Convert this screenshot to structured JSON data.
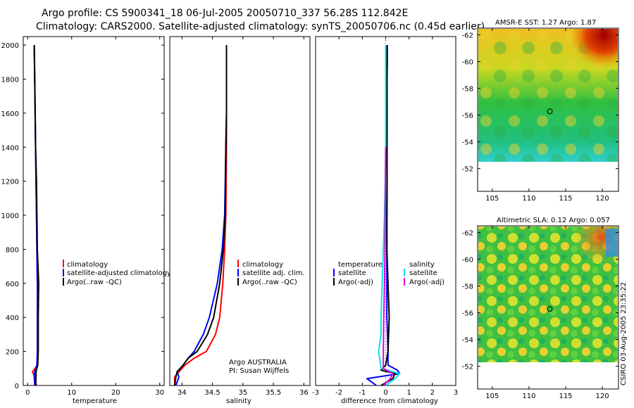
{
  "title_line1": "Argo profile: CS 5900341_18 06-Jul-2005 20050710_337 56.28S 112.842E",
  "title_line2": "Climatology: CARS2000. Satellite-adjusted climatology: synTS_20050706.nc (0.45d earlier)",
  "side_label": "CSIRO 03-Aug-2005 23:35:22",
  "colors": {
    "climatology": "#ff0000",
    "satellite": "#0000ff",
    "argo": "#000000",
    "sal_sat": "#00e5e5",
    "sal_argo": "#e000e0"
  },
  "chart_data": [
    {
      "type": "line",
      "name": "temperature-panel",
      "xlabel": "temperature",
      "ylabel": "",
      "xlim": [
        -1,
        31
      ],
      "ylim": [
        2050,
        0
      ],
      "xticks": [
        0,
        10,
        20,
        30
      ],
      "xtick_labels": [
        "0",
        "10",
        "20",
        "30"
      ],
      "yticks": [
        0,
        200,
        400,
        600,
        800,
        1000,
        1200,
        1400,
        1600,
        1800,
        2000
      ],
      "ytick_labels": [
        "0",
        "200",
        "400",
        "600",
        "800",
        "1000",
        "1200",
        "1400",
        "1600",
        "1800",
        "2000"
      ],
      "legend": [
        "climatology",
        "satellite-adjusted climatology",
        "Argo(..raw -QC)"
      ],
      "legend_position": "middle-right",
      "series": [
        {
          "name": "climatology",
          "color": "#ff0000",
          "x": [
            2.0,
            1.6,
            1.1,
            2.2,
            2.3,
            2.3,
            2.2,
            2.1,
            2.0,
            1.9,
            1.8,
            1.7,
            1.6,
            1.5
          ],
          "y": [
            0,
            50,
            80,
            120,
            200,
            400,
            600,
            800,
            1000,
            1200,
            1400,
            1600,
            1800,
            2000
          ]
        },
        {
          "name": "satellite-adjusted climatology",
          "color": "#0000ff",
          "x": [
            1.6,
            1.5,
            1.6,
            2.1,
            2.2,
            2.2,
            2.2,
            2.1,
            2.0,
            1.9,
            1.8,
            1.7,
            1.6,
            1.5
          ],
          "y": [
            0,
            50,
            80,
            120,
            200,
            400,
            600,
            800,
            1000,
            1200,
            1400,
            1600,
            1800,
            2000
          ]
        },
        {
          "name": "Argo(..raw -QC)",
          "color": "#000000",
          "x": [
            1.8,
            1.9,
            1.9,
            2.3,
            2.4,
            2.4,
            2.5,
            2.2,
            2.1,
            2.0,
            1.8,
            1.7,
            1.6,
            1.5
          ],
          "y": [
            0,
            50,
            80,
            120,
            200,
            400,
            600,
            800,
            1000,
            1200,
            1400,
            1600,
            1800,
            2000
          ]
        }
      ]
    },
    {
      "type": "line",
      "name": "salinity-panel",
      "xlabel": "salinity",
      "ylabel": "",
      "xlim": [
        33.8,
        36.1
      ],
      "ylim": [
        2050,
        0
      ],
      "xticks": [
        34,
        34.5,
        35,
        35.5,
        36
      ],
      "xtick_labels": [
        "34",
        "34.5",
        "35",
        "35.5",
        "36"
      ],
      "yticks": [],
      "ytick_labels": [],
      "legend": [
        "climatology",
        "satellite adj. clim.",
        "Argo(..raw -QC)"
      ],
      "legend_position": "middle-right",
      "annotations": [
        "Argo AUSTRALIA",
        "PI: Susan Wijffels"
      ],
      "series": [
        {
          "name": "climatology",
          "color": "#ff0000",
          "x": [
            33.88,
            33.88,
            33.95,
            34.05,
            34.2,
            34.4,
            34.55,
            34.62,
            34.67,
            34.7,
            34.72,
            34.73,
            34.73,
            34.73,
            34.73
          ],
          "y": [
            0,
            50,
            80,
            120,
            160,
            200,
            300,
            400,
            600,
            800,
            1000,
            1400,
            1600,
            1800,
            2000
          ]
        },
        {
          "name": "satellite adj. clim.",
          "color": "#0000ff",
          "x": [
            33.9,
            33.95,
            33.92,
            34.02,
            34.1,
            34.2,
            34.35,
            34.45,
            34.58,
            34.66,
            34.7,
            34.72,
            34.73,
            34.73,
            34.73
          ],
          "y": [
            0,
            50,
            80,
            120,
            160,
            200,
            300,
            400,
            600,
            800,
            1000,
            1400,
            1600,
            1800,
            2000
          ]
        },
        {
          "name": "Argo(..raw -QC)",
          "color": "#000000",
          "x": [
            33.88,
            33.9,
            33.92,
            34.02,
            34.1,
            34.25,
            34.42,
            34.52,
            34.62,
            34.68,
            34.71,
            34.72,
            34.73,
            34.73,
            34.73
          ],
          "y": [
            0,
            50,
            80,
            120,
            160,
            200,
            300,
            400,
            600,
            800,
            1000,
            1400,
            1600,
            1800,
            2000
          ]
        }
      ]
    },
    {
      "type": "line",
      "name": "difference-panel",
      "xlabel": "difference from climatology",
      "ylabel": "",
      "xlim": [
        -3,
        3
      ],
      "ylim": [
        2050,
        0
      ],
      "xticks": [
        -3,
        -2,
        -1,
        0,
        1,
        2,
        3
      ],
      "xtick_labels": [
        "-3",
        "-2",
        "-1",
        "0",
        "1",
        "2",
        "3"
      ],
      "yticks": [],
      "ytick_labels": [],
      "legend": [
        "temperature",
        "satellite",
        "Argo(-adj)",
        "salinity",
        "satellite",
        "Argo(-adj)"
      ],
      "legend_position": "middle",
      "series": [
        {
          "name": "temperature satellite",
          "color": "#0000ff",
          "x": [
            -0.4,
            -0.8,
            0.6,
            0.5,
            0.1,
            0.1,
            0.05,
            0.05,
            0.05,
            0.05,
            0.06,
            0.06,
            0.06,
            0.06,
            0.07,
            0.07
          ],
          "y": [
            0,
            40,
            70,
            90,
            120,
            200,
            400,
            600,
            800,
            1000,
            1200,
            1400,
            1600,
            1800,
            1900,
            2000
          ]
        },
        {
          "name": "temperature Argo(-adj)",
          "color": "#000000",
          "x": [
            -0.2,
            0.3,
            0.4,
            -0.2,
            0.0,
            0.1,
            0.15,
            0.1,
            0.05,
            0.05,
            0.06,
            0.05,
            0.06,
            0.05,
            0.06,
            0.05
          ],
          "y": [
            0,
            40,
            70,
            90,
            120,
            200,
            400,
            600,
            800,
            1000,
            1200,
            1400,
            1600,
            1800,
            1900,
            2000
          ]
        },
        {
          "name": "salinity satellite",
          "color": "#00e5e5",
          "x": [
            0.0,
            0.4,
            0.6,
            -0.2,
            -0.3,
            -0.2,
            -0.2,
            -0.15,
            -0.1,
            -0.05,
            -0.02,
            0.0,
            0.0,
            0.0,
            0.0
          ],
          "y": [
            0,
            40,
            70,
            100,
            200,
            300,
            400,
            600,
            800,
            1000,
            1200,
            1400,
            1600,
            1800,
            2000
          ]
        },
        {
          "name": "salinity Argo(-adj)",
          "color": "#e000e0",
          "x": [
            -0.1,
            0.2,
            0.3,
            -0.1,
            -0.1,
            -0.08,
            -0.05,
            -0.03,
            -0.02,
            -0.01,
            0.0
          ],
          "y": [
            0,
            40,
            70,
            100,
            200,
            400,
            600,
            800,
            1000,
            1200,
            1400
          ]
        }
      ]
    },
    {
      "type": "heatmap",
      "name": "sst-map",
      "title": "AMSR-E SST: 1.27 Argo: 1.87",
      "xlim": [
        103,
        122.2
      ],
      "ylim": [
        -62.5,
        -50.3
      ],
      "xticks": [
        105,
        110,
        115,
        120
      ],
      "xtick_labels": [
        "105",
        "110",
        "115",
        "120"
      ],
      "yticks": [
        -52,
        -54,
        -56,
        -58,
        -60,
        -62
      ],
      "ytick_labels": [
        "-52",
        "-54",
        "-56",
        "-58",
        "-60",
        "-62"
      ],
      "data_extent": [
        -60,
        -50.3
      ],
      "marker": {
        "lon": 112.842,
        "lat": -56.28
      }
    },
    {
      "type": "heatmap",
      "name": "sla-map",
      "title": "Altimetric SLA: 0.12 Argo: 0.057",
      "xlim": [
        103,
        122.2
      ],
      "ylim": [
        -62.5,
        -50.3
      ],
      "xticks": [
        105,
        110,
        115,
        120
      ],
      "xtick_labels": [
        "105",
        "110",
        "115",
        "120"
      ],
      "yticks": [
        -52,
        -54,
        -56,
        -58,
        -60,
        -62
      ],
      "ytick_labels": [
        "-52",
        "-54",
        "-56",
        "-58",
        "-60",
        "-62"
      ],
      "data_extent": [
        -60,
        -50.3
      ],
      "marker": {
        "lon": 112.842,
        "lat": -56.28
      }
    }
  ]
}
